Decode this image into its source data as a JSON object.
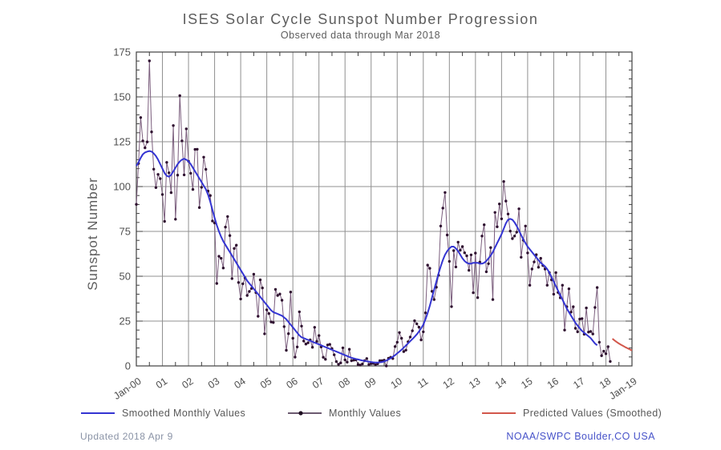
{
  "title": "ISES Solar Cycle Sunspot Number Progression",
  "subtitle": "Observed data through Mar 2018",
  "footer": {
    "updated": "Updated 2018 Apr 9",
    "credit": "NOAA/SWPC Boulder,CO USA"
  },
  "legend": [
    {
      "label": "Smoothed Monthly Values",
      "color": "#3434d2",
      "style": "line"
    },
    {
      "label": "Monthly Values",
      "color": "#3c2340",
      "style": "line-dot"
    },
    {
      "label": "Predicted Values (Smoothed)",
      "color": "#d2574b",
      "style": "line"
    }
  ],
  "colors": {
    "smoothed_line": "#3434d2",
    "monthly_line": "#7b5e7d",
    "monthly_dot": "#2e0f2f",
    "predicted_line": "#d2574b",
    "grid": "#909090",
    "frame": "#3f3f3f",
    "tick_label": "#4f4f4f",
    "axis_title": "#5d5d5d"
  },
  "chart_data": {
    "type": "line",
    "title": "ISES Solar Cycle Sunspot Number Progression",
    "subtitle": "Observed data through Mar 2018",
    "xlabel": "",
    "ylabel": "Sunspot Number",
    "ylim": [
      0,
      175
    ],
    "y_major_ticks": [
      0,
      25,
      50,
      75,
      100,
      125,
      150,
      175
    ],
    "y_minor_tick_interval": 5,
    "x_range_months": 228,
    "x_minor_tick_interval_months": 6,
    "grid": true,
    "legend_position": "bottom",
    "x_ticks": [
      {
        "m": 0,
        "label": "Jan-00"
      },
      {
        "m": 12,
        "label": "01"
      },
      {
        "m": 24,
        "label": "02"
      },
      {
        "m": 36,
        "label": "03"
      },
      {
        "m": 48,
        "label": "04"
      },
      {
        "m": 60,
        "label": "05"
      },
      {
        "m": 72,
        "label": "06"
      },
      {
        "m": 84,
        "label": "07"
      },
      {
        "m": 96,
        "label": "08"
      },
      {
        "m": 108,
        "label": "09"
      },
      {
        "m": 120,
        "label": "10"
      },
      {
        "m": 132,
        "label": "11"
      },
      {
        "m": 144,
        "label": "12"
      },
      {
        "m": 156,
        "label": "13"
      },
      {
        "m": 168,
        "label": "14"
      },
      {
        "m": 180,
        "label": "15"
      },
      {
        "m": 192,
        "label": "16"
      },
      {
        "m": 204,
        "label": "17"
      },
      {
        "m": 216,
        "label": "18"
      },
      {
        "m": 228,
        "label": "Jan-19"
      }
    ],
    "series": [
      {
        "name": "Monthly Values",
        "start_month": 0,
        "values": [
          90.1,
          112.9,
          138.5,
          125.5,
          121.6,
          124.9,
          170.1,
          130.5,
          109.7,
          99.4,
          106.8,
          104.4,
          95.6,
          80.6,
          113.5,
          107.7,
          96.6,
          134.0,
          81.8,
          106.4,
          150.7,
          125.5,
          106.5,
          132.2,
          114.1,
          107.4,
          98.4,
          120.7,
          120.8,
          88.3,
          99.6,
          116.4,
          109.6,
          97.5,
          95.0,
          80.8,
          79.7,
          46.0,
          61.1,
          60.0,
          54.6,
          77.4,
          83.3,
          72.7,
          48.7,
          65.5,
          67.3,
          46.5,
          37.3,
          45.8,
          49.1,
          39.3,
          41.5,
          43.2,
          51.1,
          40.9,
          27.7,
          48.0,
          43.5,
          17.9,
          31.3,
          29.2,
          24.5,
          24.2,
          42.7,
          39.3,
          40.1,
          36.6,
          21.9,
          8.7,
          18.0,
          41.2,
          15.4,
          4.9,
          10.6,
          30.2,
          22.2,
          13.9,
          12.2,
          12.9,
          14.5,
          10.4,
          21.5,
          13.6,
          16.9,
          10.6,
          4.8,
          3.7,
          11.7,
          12.0,
          9.7,
          6.2,
          2.4,
          0.9,
          1.7,
          10.1,
          3.4,
          2.1,
          9.3,
          2.9,
          3.2,
          3.4,
          0.8,
          0.5,
          1.1,
          2.9,
          4.1,
          0.8,
          1.3,
          1.4,
          0.7,
          1.2,
          2.9,
          2.9,
          3.2,
          0.0,
          4.3,
          4.8,
          4.1,
          10.8,
          13.2,
          18.6,
          15.4,
          8.0,
          8.8,
          13.5,
          16.1,
          19.6,
          25.2,
          23.5,
          21.6,
          14.5,
          19.0,
          29.6,
          56.2,
          54.4,
          41.6,
          37.0,
          43.9,
          50.6,
          78.0,
          88.0,
          96.7,
          73.0,
          58.3,
          33.1,
          64.3,
          55.2,
          69.0,
          64.5,
          66.5,
          63.1,
          61.4,
          53.3,
          61.9,
          40.8,
          62.9,
          38.1,
          57.9,
          72.4,
          78.7,
          52.5,
          57.0,
          66.0,
          37.0,
          85.6,
          77.6,
          90.3,
          82.0,
          102.8,
          91.9,
          84.7,
          75.2,
          71.0,
          72.4,
          74.6,
          87.6,
          60.6,
          70.1,
          78.0,
          63.0,
          45.0,
          54.0,
          58.0,
          62.0,
          55.0,
          60.0,
          56.0,
          54.0,
          45.0,
          52.0,
          48.0,
          40.0,
          52.0,
          41.0,
          38.0,
          45.0,
          20.0,
          33.0,
          43.0,
          30.0,
          33.0,
          21.0,
          19.0,
          26.1,
          26.4,
          17.7,
          32.3,
          18.9,
          19.2,
          17.8,
          32.6,
          43.7,
          13.2,
          5.7,
          8.2,
          6.8,
          10.7,
          2.5
        ]
      },
      {
        "name": "Smoothed Monthly Values",
        "start_month": 0,
        "values": [
          111.5,
          113.5,
          116.0,
          118.0,
          119.0,
          119.5,
          119.8,
          119.5,
          118.5,
          117.0,
          115.0,
          112.5,
          110.0,
          107.5,
          106.0,
          105.5,
          106.5,
          108.5,
          110.5,
          112.5,
          114.0,
          115.0,
          115.5,
          115.0,
          114.0,
          112.5,
          110.5,
          108.5,
          106.5,
          104.5,
          102.5,
          100.5,
          98.5,
          95.5,
          91.5,
          87.0,
          82.5,
          78.5,
          75.0,
          72.0,
          69.5,
          67.5,
          65.5,
          63.5,
          61.5,
          59.5,
          57.5,
          55.5,
          53.5,
          51.5,
          49.5,
          47.5,
          46.0,
          44.5,
          43.0,
          41.5,
          40.0,
          38.5,
          37.0,
          35.5,
          34.0,
          32.5,
          31.0,
          30.0,
          29.5,
          29.0,
          28.5,
          28.0,
          27.0,
          26.0,
          24.5,
          23.0,
          21.5,
          20.0,
          18.5,
          17.0,
          16.0,
          15.5,
          15.0,
          14.5,
          14.0,
          13.5,
          13.0,
          12.5,
          12.0,
          11.5,
          11.0,
          10.5,
          10.0,
          9.5,
          9.0,
          8.5,
          8.0,
          7.5,
          7.0,
          6.5,
          6.0,
          5.5,
          5.0,
          4.5,
          4.2,
          3.9,
          3.6,
          3.3,
          3.0,
          2.8,
          2.6,
          2.4,
          2.2,
          2.0,
          1.9,
          1.9,
          2.0,
          2.2,
          2.5,
          3.0,
          3.6,
          4.3,
          5.1,
          6.0,
          7.0,
          8.0,
          9.0,
          10.2,
          11.4,
          12.6,
          13.8,
          15.0,
          16.2,
          17.6,
          19.2,
          21.0,
          23.0,
          26.0,
          29.5,
          33.5,
          38.0,
          42.5,
          47.0,
          51.5,
          55.5,
          59.0,
          62.0,
          64.0,
          65.5,
          66.5,
          66.5,
          65.5,
          64.0,
          62.0,
          60.0,
          58.5,
          57.5,
          57.0,
          57.0,
          57.5,
          57.5,
          57.5,
          57.0,
          57.0,
          57.5,
          58.5,
          60.0,
          61.5,
          63.5,
          66.0,
          68.5,
          71.0,
          73.5,
          76.5,
          79.5,
          81.5,
          82.0,
          81.5,
          80.0,
          78.0,
          75.5,
          73.0,
          70.5,
          68.5,
          66.5,
          65.0,
          63.5,
          62.0,
          60.5,
          59.0,
          57.5,
          56.5,
          55.5,
          54.0,
          52.0,
          49.5,
          47.0,
          44.5,
          42.0,
          39.5,
          37.0,
          34.5,
          32.0,
          30.0,
          28.0,
          26.0,
          24.0,
          22.5,
          21.0,
          19.5,
          18.5,
          17.5,
          16.5,
          15.5,
          14.0,
          12.5,
          11.5
        ]
      },
      {
        "name": "Predicted Values (Smoothed)",
        "start_month": 219,
        "values": [
          15.2,
          14.2,
          13.3,
          12.5,
          11.8,
          11.1,
          10.4,
          9.8,
          9.2,
          8.6
        ]
      }
    ]
  }
}
